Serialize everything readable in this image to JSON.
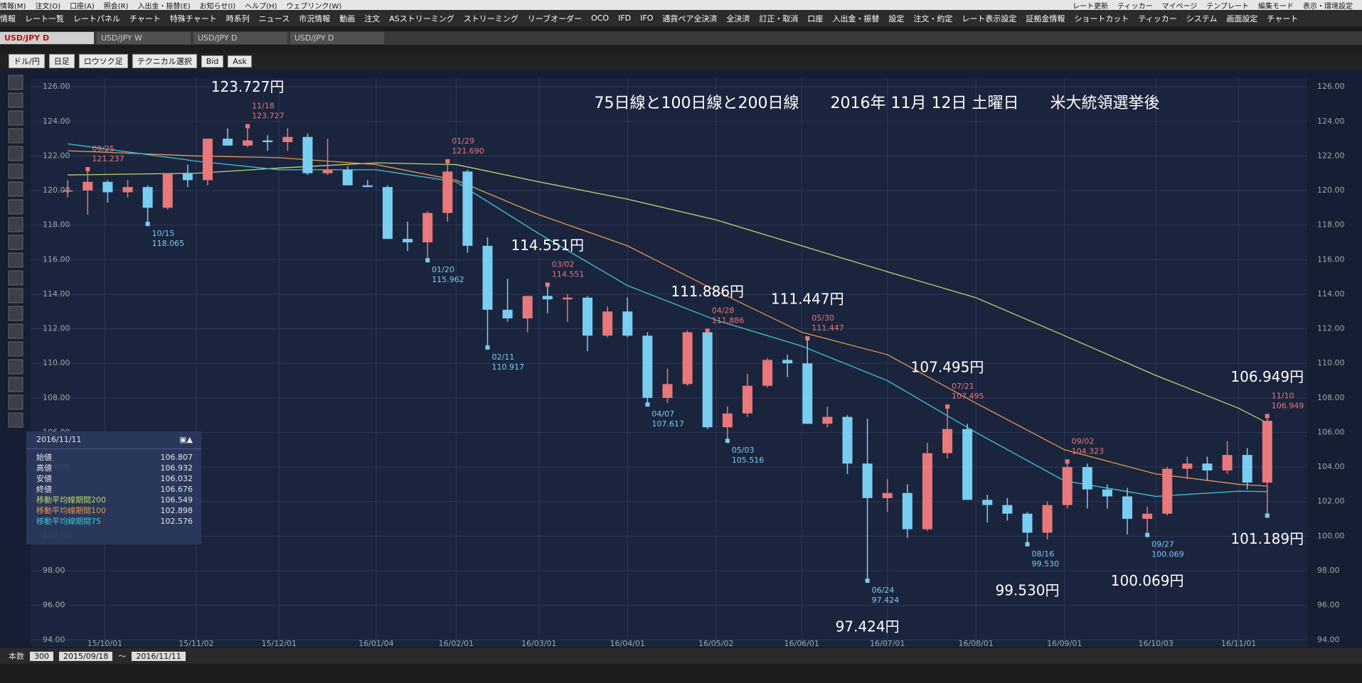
{
  "menu": [
    "情報(M)",
    "注文(O)",
    "口座(A)",
    "照会(R)",
    "入出金・振替(E)",
    "お知らせ(I)",
    "ヘルプ(H)",
    "ウェブリンク(W)"
  ],
  "menu_right": [
    "レート更新",
    "ティッカー",
    "マイページ",
    "テンプレート",
    "編集モード",
    "表示・環境設定"
  ],
  "toolbar": [
    "情報",
    "レート一覧",
    "レートパネル",
    "チャート",
    "特殊チャート",
    "時系列",
    "ニュース",
    "市況情報",
    "動画",
    "注文",
    "ASストリーミング",
    "ストリーミング",
    "リーブオーダー",
    "OCO",
    "IFD",
    "IFO",
    "通貨ペア全決済",
    "全決済",
    "訂正・取消",
    "口座",
    "入出金・振替",
    "設定",
    "注文・約定",
    "レート表示設定",
    "証拠金情報",
    "ショートカット",
    "ティッカー",
    "システム",
    "画面設定",
    "チャート"
  ],
  "tabs": [
    "USD/JPY D",
    "USD/JPY W",
    "USD/JPY D",
    "USD/JPY D"
  ],
  "chart_toolbar": [
    "ドル/円",
    "日足",
    "ロウソク足",
    "テクニカル選択",
    "Bid",
    "Ask"
  ],
  "info_panel": {
    "date": "2016/11/11",
    "rows": [
      [
        "始値",
        106.807
      ],
      [
        "高値",
        106.932
      ],
      [
        "安値",
        106.032
      ],
      [
        "終値",
        106.676
      ]
    ],
    "ma_values": [
      106.549,
      102.898,
      102.576
    ]
  },
  "bottom_bar": {
    "label": "本数",
    "count": 300,
    "from": "2015/09/18",
    "sep": "〜",
    "to": "2016/11/11"
  },
  "chart_data": {
    "type": "candlestick",
    "title": "75日線と100日線と200日線　　2016年 11月 12日 土曜日　　米大統領選挙後",
    "xlim": [
      "15/09/05",
      "16/11/25"
    ],
    "xticks": [
      "15/10/01",
      "15/11/02",
      "15/12/01",
      "16/01/04",
      "16/02/01",
      "16/03/01",
      "16/04/01",
      "16/05/02",
      "16/06/01",
      "16/07/01",
      "16/08/01",
      "16/09/01",
      "16/10/03",
      "16/11/01"
    ],
    "ylim": [
      93.6,
      126.5
    ],
    "yticks": [
      {
        "value": 94,
        "label": "94.00"
      },
      {
        "value": 96,
        "label": "96.00"
      },
      {
        "value": 98,
        "label": "98.00"
      },
      {
        "value": 100,
        "label": "100.00"
      },
      {
        "value": 102,
        "label": "102.00"
      },
      {
        "value": 104,
        "label": "104.00"
      },
      {
        "value": 106,
        "label": "106.00"
      },
      {
        "value": 108,
        "label": "108.00"
      },
      {
        "value": 110,
        "label": "110.00"
      },
      {
        "value": 112,
        "label": "112.00"
      },
      {
        "value": 114,
        "label": "114.00"
      },
      {
        "value": 116,
        "label": "116.00"
      },
      {
        "value": 118,
        "label": "118.00"
      },
      {
        "value": 120,
        "label": "120.00"
      },
      {
        "value": 122,
        "label": "122.00"
      },
      {
        "value": 124,
        "label": "124.00"
      },
      {
        "value": 126,
        "label": "126.00"
      }
    ],
    "grid": true,
    "up_color": "#e8787a",
    "down_color": "#78cdf0",
    "candles": [
      {
        "date": "15/09/18",
        "open": 120.0,
        "high": 120.6,
        "low": 119.6,
        "close": 120.0
      },
      {
        "date": "15/09/25",
        "open": 120.0,
        "high": 121.237,
        "low": 118.6,
        "close": 120.5
      },
      {
        "date": "15/10/02",
        "open": 120.5,
        "high": 120.6,
        "low": 119.3,
        "close": 119.9
      },
      {
        "date": "15/10/09",
        "open": 119.9,
        "high": 120.6,
        "low": 119.6,
        "close": 120.2
      },
      {
        "date": "15/10/16",
        "open": 120.2,
        "high": 120.3,
        "low": 118.065,
        "close": 119.0
      },
      {
        "date": "15/10/23",
        "open": 119.0,
        "high": 121.0,
        "low": 118.9,
        "close": 121.0
      },
      {
        "date": "15/10/30",
        "open": 121.0,
        "high": 121.5,
        "low": 120.2,
        "close": 120.6
      },
      {
        "date": "15/11/06",
        "open": 120.6,
        "high": 123.0,
        "low": 120.3,
        "close": 123.0
      },
      {
        "date": "15/11/13",
        "open": 123.0,
        "high": 123.6,
        "low": 122.6,
        "close": 122.6
      },
      {
        "date": "15/11/20",
        "open": 122.6,
        "high": 123.727,
        "low": 122.5,
        "close": 122.9
      },
      {
        "date": "15/11/27",
        "open": 122.9,
        "high": 123.2,
        "low": 122.3,
        "close": 122.8
      },
      {
        "date": "15/12/04",
        "open": 122.8,
        "high": 123.6,
        "low": 122.3,
        "close": 123.1
      },
      {
        "date": "15/12/11",
        "open": 123.1,
        "high": 123.3,
        "low": 120.9,
        "close": 121.0
      },
      {
        "date": "15/12/18",
        "open": 121.0,
        "high": 123.0,
        "low": 120.9,
        "close": 121.2
      },
      {
        "date": "15/12/25",
        "open": 121.2,
        "high": 121.4,
        "low": 120.3,
        "close": 120.3
      },
      {
        "date": "16/01/01",
        "open": 120.3,
        "high": 120.6,
        "low": 120.2,
        "close": 120.2
      },
      {
        "date": "16/01/08",
        "open": 120.2,
        "high": 120.3,
        "low": 117.2,
        "close": 117.2
      },
      {
        "date": "16/01/15",
        "open": 117.2,
        "high": 118.2,
        "low": 116.5,
        "close": 117.0
      },
      {
        "date": "16/01/22",
        "open": 117.0,
        "high": 118.8,
        "low": 115.962,
        "close": 118.7
      },
      {
        "date": "16/01/29",
        "open": 118.7,
        "high": 121.69,
        "low": 118.2,
        "close": 121.1
      },
      {
        "date": "16/02/05",
        "open": 121.1,
        "high": 121.2,
        "low": 116.4,
        "close": 116.8
      },
      {
        "date": "16/02/12",
        "open": 116.8,
        "high": 117.3,
        "low": 110.917,
        "close": 113.1
      },
      {
        "date": "16/02/19",
        "open": 113.1,
        "high": 114.9,
        "low": 112.4,
        "close": 112.6
      },
      {
        "date": "16/02/26",
        "open": 112.6,
        "high": 113.9,
        "low": 111.8,
        "close": 113.9
      },
      {
        "date": "16/03/04",
        "open": 113.9,
        "high": 114.551,
        "low": 112.9,
        "close": 113.7
      },
      {
        "date": "16/03/11",
        "open": 113.7,
        "high": 114.0,
        "low": 112.4,
        "close": 113.8
      },
      {
        "date": "16/03/18",
        "open": 113.8,
        "high": 113.9,
        "low": 110.7,
        "close": 111.6
      },
      {
        "date": "16/03/25",
        "open": 111.6,
        "high": 113.3,
        "low": 111.5,
        "close": 113.0
      },
      {
        "date": "16/04/01",
        "open": 113.0,
        "high": 113.8,
        "low": 111.5,
        "close": 111.6
      },
      {
        "date": "16/04/08",
        "open": 111.6,
        "high": 111.8,
        "low": 107.617,
        "close": 108.0
      },
      {
        "date": "16/04/15",
        "open": 108.0,
        "high": 109.7,
        "low": 107.7,
        "close": 108.8
      },
      {
        "date": "16/04/22",
        "open": 108.8,
        "high": 111.9,
        "low": 108.7,
        "close": 111.8
      },
      {
        "date": "16/04/29",
        "open": 111.8,
        "high": 111.886,
        "low": 106.2,
        "close": 106.3
      },
      {
        "date": "16/05/06",
        "open": 106.3,
        "high": 107.5,
        "low": 105.516,
        "close": 107.1
      },
      {
        "date": "16/05/13",
        "open": 107.1,
        "high": 109.4,
        "low": 106.9,
        "close": 108.7
      },
      {
        "date": "16/05/20",
        "open": 108.7,
        "high": 110.3,
        "low": 108.6,
        "close": 110.2
      },
      {
        "date": "16/05/27",
        "open": 110.2,
        "high": 110.5,
        "low": 109.2,
        "close": 110.0
      },
      {
        "date": "16/06/03",
        "open": 110.0,
        "high": 111.447,
        "low": 106.5,
        "close": 106.5
      },
      {
        "date": "16/06/10",
        "open": 106.5,
        "high": 107.5,
        "low": 106.3,
        "close": 106.9
      },
      {
        "date": "16/06/17",
        "open": 106.9,
        "high": 107.0,
        "low": 103.6,
        "close": 104.2
      },
      {
        "date": "16/06/24",
        "open": 104.2,
        "high": 106.8,
        "low": 97.424,
        "close": 102.2
      },
      {
        "date": "16/07/01",
        "open": 102.2,
        "high": 103.3,
        "low": 101.4,
        "close": 102.5
      },
      {
        "date": "16/07/08",
        "open": 102.5,
        "high": 103.0,
        "low": 99.9,
        "close": 100.4
      },
      {
        "date": "16/07/15",
        "open": 100.4,
        "high": 105.4,
        "low": 100.3,
        "close": 104.8
      },
      {
        "date": "16/07/22",
        "open": 104.8,
        "high": 107.495,
        "low": 104.5,
        "close": 106.2
      },
      {
        "date": "16/07/29",
        "open": 106.2,
        "high": 106.5,
        "low": 102.1,
        "close": 102.1
      },
      {
        "date": "16/08/05",
        "open": 102.1,
        "high": 102.4,
        "low": 100.8,
        "close": 101.8
      },
      {
        "date": "16/08/12",
        "open": 101.8,
        "high": 102.2,
        "low": 100.9,
        "close": 101.3
      },
      {
        "date": "16/08/19",
        "open": 101.3,
        "high": 101.4,
        "low": 99.53,
        "close": 100.2
      },
      {
        "date": "16/08/26",
        "open": 100.2,
        "high": 102.0,
        "low": 99.8,
        "close": 101.8
      },
      {
        "date": "16/09/02",
        "open": 101.8,
        "high": 104.323,
        "low": 101.6,
        "close": 104.0
      },
      {
        "date": "16/09/09",
        "open": 104.0,
        "high": 104.2,
        "low": 101.6,
        "close": 102.7
      },
      {
        "date": "16/09/16",
        "open": 102.7,
        "high": 103.0,
        "low": 101.6,
        "close": 102.3
      },
      {
        "date": "16/09/23",
        "open": 102.3,
        "high": 102.8,
        "low": 100.1,
        "close": 101.0
      },
      {
        "date": "16/09/30",
        "open": 101.0,
        "high": 101.7,
        "low": 100.069,
        "close": 101.3
      },
      {
        "date": "16/10/07",
        "open": 101.3,
        "high": 104.0,
        "low": 101.2,
        "close": 103.9
      },
      {
        "date": "16/10/14",
        "open": 103.9,
        "high": 104.6,
        "low": 103.3,
        "close": 104.2
      },
      {
        "date": "16/10/21",
        "open": 104.2,
        "high": 104.6,
        "low": 103.2,
        "close": 103.8
      },
      {
        "date": "16/10/28",
        "open": 103.8,
        "high": 105.5,
        "low": 103.6,
        "close": 104.7
      },
      {
        "date": "16/11/04",
        "open": 104.7,
        "high": 105.1,
        "low": 102.7,
        "close": 103.1
      },
      {
        "date": "16/11/11",
        "open": 103.1,
        "high": 106.949,
        "low": 101.189,
        "close": 106.676
      }
    ],
    "series": [
      {
        "name": "移動平均線期間200",
        "color": "#b8d86c",
        "x": [
          "15/09/18",
          "15/11/02",
          "15/12/01",
          "16/01/04",
          "16/02/01",
          "16/03/01",
          "16/04/01",
          "16/05/02",
          "16/06/01",
          "16/07/01",
          "16/08/01",
          "16/09/01",
          "16/10/03",
          "16/11/01",
          "16/11/11"
        ],
        "values": [
          120.9,
          121.0,
          121.3,
          121.6,
          121.5,
          120.5,
          119.5,
          118.3,
          116.8,
          115.3,
          113.8,
          111.6,
          109.3,
          107.4,
          106.549
        ]
      },
      {
        "name": "移動平均線期間100",
        "color": "#e8964c",
        "x": [
          "15/09/18",
          "15/11/02",
          "15/12/01",
          "16/01/04",
          "16/02/01",
          "16/03/01",
          "16/04/01",
          "16/05/02",
          "16/06/01",
          "16/07/01",
          "16/08/01",
          "16/09/01",
          "16/10/03",
          "16/11/01",
          "16/11/11"
        ],
        "values": [
          122.3,
          122.0,
          121.9,
          121.5,
          120.6,
          118.6,
          116.8,
          114.2,
          111.8,
          110.5,
          107.7,
          105.0,
          103.6,
          103.0,
          102.898
        ]
      },
      {
        "name": "移動平均線期間75",
        "color": "#3ec6d2",
        "x": [
          "15/09/18",
          "15/11/02",
          "15/12/01",
          "16/01/04",
          "16/02/01",
          "16/03/01",
          "16/04/01",
          "16/05/02",
          "16/06/01",
          "16/07/01",
          "16/08/01",
          "16/09/01",
          "16/10/03",
          "16/11/01",
          "16/11/11"
        ],
        "values": [
          122.7,
          121.7,
          121.2,
          121.2,
          120.5,
          117.5,
          114.5,
          112.5,
          111.0,
          109.0,
          106.0,
          103.2,
          102.3,
          102.6,
          102.576
        ]
      }
    ],
    "markers": [
      {
        "date": "09/25",
        "value": 121.237
      },
      {
        "date": "11/18",
        "value": 123.727,
        "callout": "123.727円"
      },
      {
        "date": "10/15",
        "value": 118.065
      },
      {
        "date": "01/29",
        "value": 121.69,
        "value_label": "121.690"
      },
      {
        "date": "01/20",
        "value": 115.962
      },
      {
        "date": "03/02",
        "value": 114.551,
        "callout": "114.551円"
      },
      {
        "date": "02/11",
        "value": 110.917
      },
      {
        "date": "04/07",
        "value": 107.617
      },
      {
        "date": "04/28",
        "value": 111.886,
        "callout": "111.886円"
      },
      {
        "date": "05/03",
        "value": 105.516
      },
      {
        "date": "05/30",
        "value": 111.447,
        "callout": "111.447円"
      },
      {
        "date": "06/24",
        "value": 97.424,
        "callout": "97.424円"
      },
      {
        "date": "07/21",
        "value": 107.495,
        "callout": "107.495円"
      },
      {
        "date": "08/16",
        "value": 99.53,
        "value_label": "99.530",
        "callout": "99.530円"
      },
      {
        "date": "09/02",
        "value": 104.323
      },
      {
        "date": "09/27",
        "value": 100.069,
        "callout": "100.069円"
      },
      {
        "date": "11/10",
        "value": 106.949,
        "callout": "106.949円"
      },
      {
        "value": 101.189,
        "callout": "101.189円"
      }
    ]
  }
}
